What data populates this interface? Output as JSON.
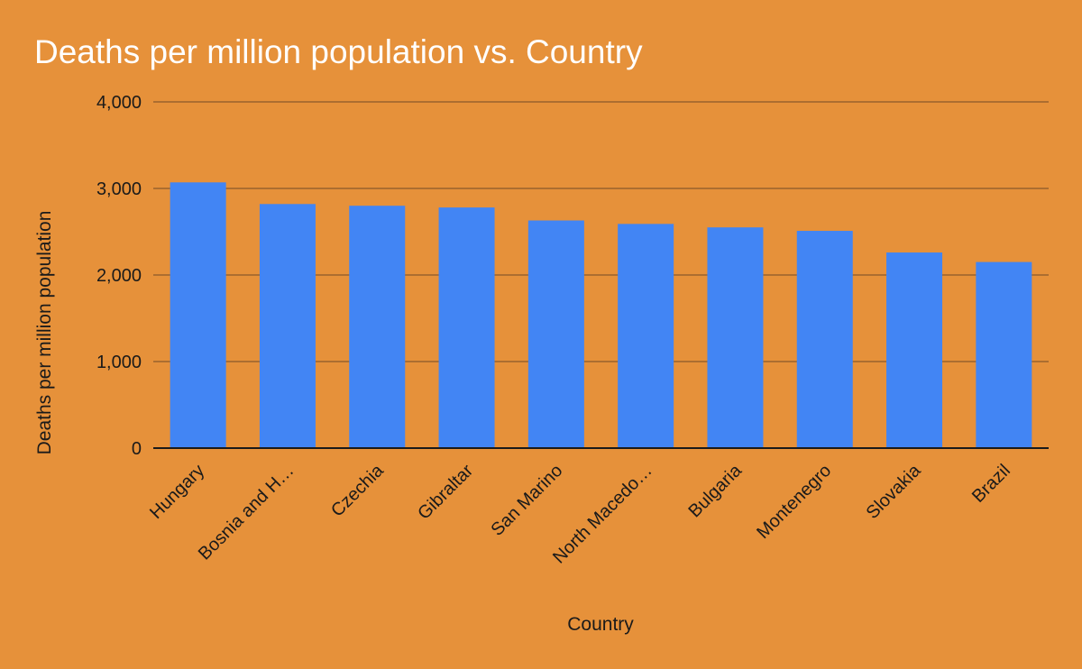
{
  "colors": {
    "background": "#e6913a",
    "bar": "#4285f4",
    "gridline": "#8a5a2b",
    "baseline": "#1a1a1a"
  },
  "chart_data": {
    "type": "bar",
    "title": "Deaths per million population vs. Country",
    "xlabel": "Country",
    "ylabel": "Deaths per million population",
    "categories": [
      "Hungary",
      "Bosnia and H…",
      "Czechia",
      "Gibraltar",
      "San Marino",
      "North Macedo…",
      "Bulgaria",
      "Montenegro",
      "Slovakia",
      "Brazil"
    ],
    "values": [
      3070,
      2820,
      2800,
      2780,
      2630,
      2590,
      2550,
      2510,
      2260,
      2150
    ],
    "ylim": [
      0,
      4000
    ],
    "yticks": [
      0,
      1000,
      2000,
      3000,
      4000
    ],
    "ytick_labels": [
      "0",
      "1,000",
      "2,000",
      "3,000",
      "4,000"
    ],
    "grid": true,
    "legend": "none"
  }
}
